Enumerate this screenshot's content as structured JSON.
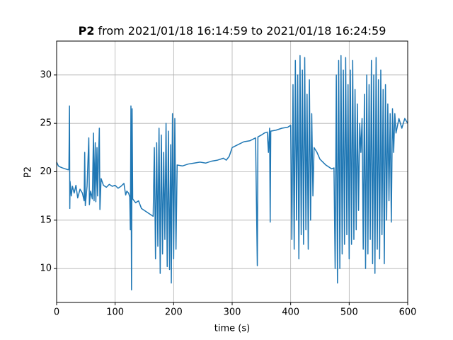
{
  "chart_data": {
    "type": "line",
    "title_bold": "P2",
    "title": "from 2021/01/18 16:14:59 to 2021/01/18 16:24:59",
    "x_label": "time (s)",
    "y_label": "P2",
    "xlim": [
      0,
      600
    ],
    "ylim": [
      6.5,
      33.5
    ],
    "xticks": [
      0,
      100,
      200,
      300,
      400,
      500,
      600
    ],
    "yticks": [
      10,
      15,
      20,
      25,
      30
    ],
    "grid": true,
    "x": [
      0,
      3,
      6,
      10,
      15,
      20,
      21,
      22,
      22.5,
      23,
      25,
      27,
      30,
      33,
      36,
      40,
      44,
      47,
      48,
      49,
      52,
      55,
      56,
      58,
      61,
      63,
      64,
      66,
      67,
      69,
      70,
      73,
      74,
      76,
      80,
      85,
      90,
      95,
      100,
      105,
      110,
      115,
      118,
      120,
      123,
      125,
      126,
      127,
      128,
      129,
      130,
      135,
      140,
      145,
      150,
      155,
      160,
      165,
      167,
      169,
      171,
      173,
      175,
      177,
      179,
      181,
      183,
      185,
      187,
      189,
      191,
      193,
      195,
      196,
      198,
      200,
      202,
      204,
      206,
      215,
      225,
      235,
      245,
      255,
      265,
      275,
      285,
      290,
      295,
      300,
      310,
      320,
      330,
      340,
      343,
      344,
      350,
      355,
      360,
      362,
      364,
      365,
      366,
      375,
      385,
      395,
      400,
      402,
      404,
      406,
      408,
      410,
      412,
      414,
      416,
      418,
      420,
      422,
      424,
      426,
      428,
      430,
      432,
      434,
      436,
      438,
      440,
      445,
      450,
      455,
      460,
      465,
      470,
      474,
      476,
      478,
      480,
      482,
      484,
      486,
      488,
      490,
      492,
      494,
      496,
      498,
      500,
      502,
      504,
      506,
      508,
      510,
      512,
      514,
      516,
      518,
      520,
      522,
      524,
      526,
      528,
      530,
      532,
      534,
      536,
      538,
      540,
      542,
      544,
      546,
      548,
      550,
      552,
      554,
      556,
      558,
      560,
      562,
      564,
      566,
      568,
      570,
      572,
      574,
      576,
      578,
      580,
      585,
      590,
      595,
      600
    ],
    "series": [
      {
        "name": "P2",
        "color": "#1f77b4",
        "values": [
          21,
          20.6,
          20.5,
          20.4,
          20.3,
          20.2,
          20.3,
          26.8,
          16.2,
          19,
          17.5,
          18.5,
          17.8,
          18.6,
          17.3,
          18.2,
          17.8,
          17,
          22,
          16.5,
          18.5,
          23.5,
          16.6,
          18,
          17.2,
          24,
          17,
          23,
          16.9,
          22.5,
          17.5,
          24.5,
          16.1,
          19.3,
          18.6,
          18.4,
          18.7,
          18.5,
          18.6,
          18.3,
          18.5,
          18.8,
          17.6,
          18,
          17.8,
          17.4,
          14,
          26.8,
          7.8,
          26.5,
          17.2,
          16.8,
          17,
          16.2,
          16,
          15.8,
          15.6,
          15.4,
          22.5,
          11,
          23,
          12.3,
          24.5,
          9.5,
          23.8,
          11.5,
          22,
          13,
          25,
          10.2,
          24.2,
          9.9,
          22.8,
          8.5,
          26,
          11,
          25.5,
          12,
          20.7,
          20.6,
          20.8,
          20.9,
          21,
          20.9,
          21.1,
          21.2,
          21.4,
          21.2,
          21.6,
          22.5,
          22.8,
          23.1,
          23.2,
          23.5,
          10.3,
          23.6,
          23.8,
          24,
          24.1,
          22,
          24.5,
          14.8,
          24.2,
          24.3,
          24.5,
          24.6,
          24.8,
          13,
          29,
          12,
          31.5,
          15,
          30,
          11,
          32,
          13.5,
          30.5,
          12.5,
          31.8,
          14,
          28,
          12,
          29.5,
          15,
          26,
          17.5,
          22.5,
          22,
          21.3,
          21,
          20.7,
          20.5,
          20.3,
          20.4,
          10,
          30,
          8.5,
          31.5,
          10,
          32,
          11.5,
          30.5,
          12.5,
          31.8,
          13.5,
          29,
          11,
          30.5,
          12.5,
          31.5,
          13,
          28.5,
          14,
          27,
          16,
          25,
          22,
          25.5,
          12,
          28,
          10,
          30,
          11.5,
          29,
          13,
          31.5,
          10.5,
          30,
          9.5,
          31.8,
          12,
          29.5,
          11,
          30.5,
          13.5,
          28.5,
          10.5,
          29,
          15,
          27,
          17,
          26,
          14.8,
          26.5,
          22,
          26,
          24,
          25.5,
          24.5,
          25.5,
          25
        ]
      }
    ]
  }
}
